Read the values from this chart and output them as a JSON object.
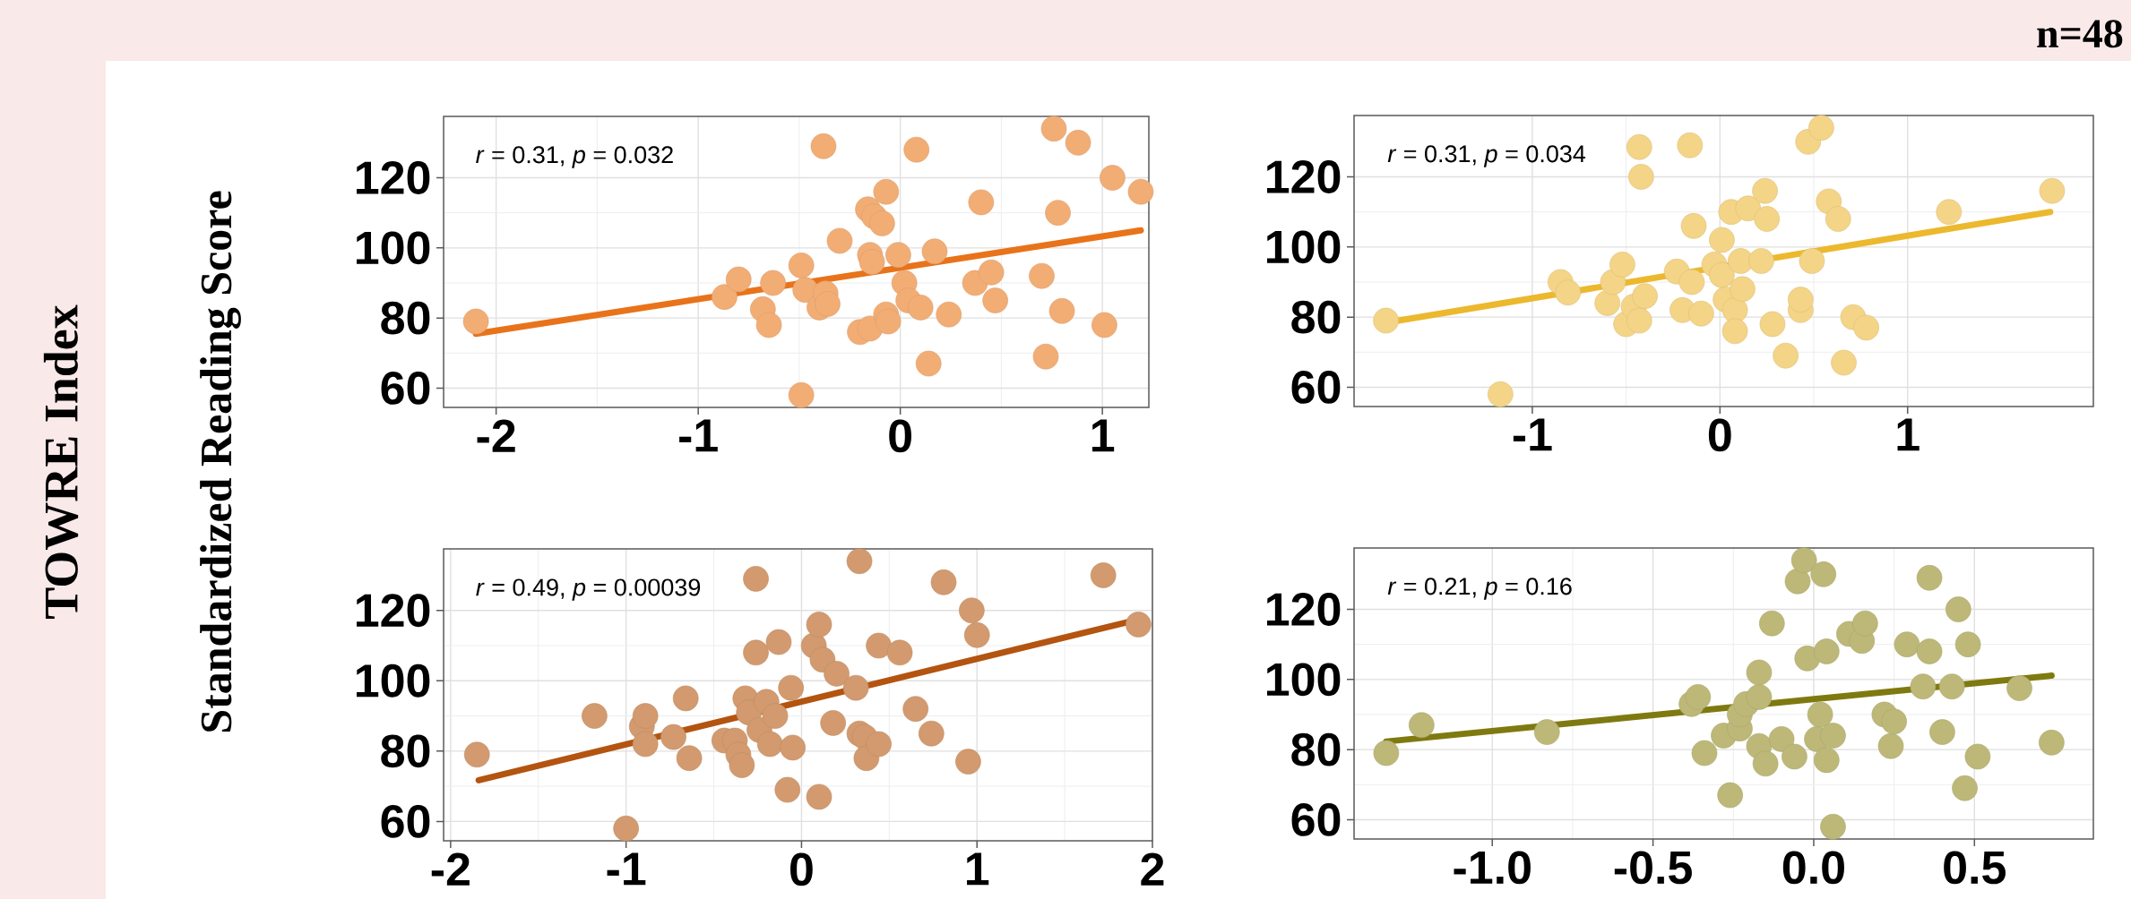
{
  "chart_data": [
    {
      "type": "scatter",
      "annotations": [
        "*r* = 0.31, *p* = 0.032",
        "n=48",
        "TOWRE Index",
        "Standardized Reading Score"
      ],
      "grid": true,
      "xlim": [
        -2.26,
        1.23
      ],
      "ylim": [
        54.5,
        137.5
      ],
      "xticks": [
        -2,
        -1,
        0,
        1
      ],
      "yticks": [
        60,
        80,
        100,
        120
      ],
      "series": [
        {
          "type": "scatter",
          "marker": "circle",
          "color": "#f2ad75",
          "x": [
            -2.1,
            -0.87,
            -0.8,
            -0.68,
            -0.65,
            -0.63,
            -0.49,
            -0.47,
            -0.38,
            -0.4,
            -0.37,
            -0.36,
            -0.3,
            -0.2,
            -0.16,
            -0.15,
            -0.15,
            -0.14,
            -0.13,
            -0.09,
            -0.07,
            -0.07,
            -0.06,
            -0.01,
            0.02,
            0.04,
            0.08,
            0.1,
            0.14,
            0.17,
            0.24,
            0.37,
            0.4,
            0.45,
            0.47,
            0.7,
            0.72,
            0.76,
            0.78,
            0.8,
            0.88,
            1.01,
            1.05,
            1.19,
            -0.49
          ],
          "values": [
            79,
            86,
            91,
            82.5,
            78,
            90,
            95,
            88,
            129,
            83,
            87,
            84,
            102,
            76,
            111,
            77,
            98,
            96,
            109,
            107,
            116,
            81,
            79,
            98,
            90,
            85,
            128,
            83,
            67,
            99,
            81,
            90,
            113,
            93,
            85,
            92,
            69,
            134,
            110,
            82,
            130,
            78,
            120,
            116,
            58
          ]
        },
        {
          "type": "line",
          "color": "#e8731a",
          "x": [
            -2.1,
            1.19
          ],
          "values": [
            75.5,
            105
          ]
        }
      ]
    },
    {
      "type": "scatter",
      "annotations": [
        "*r* = 0.31, *p* = 0.034"
      ],
      "grid": true,
      "xlim": [
        -1.95,
        1.99
      ],
      "ylim": [
        54.5,
        137.5
      ],
      "xticks": [
        -1,
        0,
        1
      ],
      "yticks": [
        60,
        80,
        100,
        120
      ],
      "series": [
        {
          "type": "scatter",
          "marker": "circle",
          "color": "#f4d486",
          "x": [
            -1.78,
            -1.17,
            -0.85,
            -0.81,
            -0.6,
            -0.57,
            -0.52,
            -0.5,
            -0.46,
            -0.43,
            -0.43,
            -0.42,
            -0.4,
            -0.23,
            -0.2,
            -0.16,
            -0.15,
            -0.14,
            -0.1,
            -0.03,
            0.01,
            0.01,
            0.03,
            0.06,
            0.08,
            0.08,
            0.11,
            0.12,
            0.15,
            0.22,
            0.24,
            0.25,
            0.28,
            0.35,
            0.43,
            0.43,
            0.47,
            0.49,
            0.54,
            0.58,
            0.63,
            0.66,
            0.71,
            0.78,
            1.22,
            1.77
          ],
          "values": [
            79,
            58,
            90,
            87,
            84,
            90,
            95,
            78,
            83,
            79,
            128.5,
            120,
            86,
            93,
            82,
            129,
            90,
            106,
            81,
            95,
            102,
            92,
            85,
            110,
            82,
            76,
            96,
            88,
            111,
            96,
            116,
            108,
            78,
            69,
            82,
            85,
            130,
            96,
            134,
            113,
            108,
            67,
            80,
            77,
            110,
            116
          ]
        },
        {
          "type": "line",
          "color": "#ecb82e",
          "x": [
            -1.77,
            1.76
          ],
          "values": [
            78.5,
            110
          ]
        }
      ]
    },
    {
      "type": "scatter",
      "annotations": [
        "*r* = 0.49, *p* = 0.00039"
      ],
      "grid": true,
      "xlim": [
        -2.04,
        2.0
      ],
      "ylim": [
        54.5,
        137.5
      ],
      "xticks": [
        -2,
        -1,
        0,
        1,
        2
      ],
      "yticks": [
        60,
        80,
        100,
        120
      ],
      "series": [
        {
          "type": "scatter",
          "marker": "circle",
          "color": "#d29a6e",
          "x": [
            -1.85,
            -1.18,
            -1.0,
            -0.91,
            -0.89,
            -0.89,
            -0.73,
            -0.66,
            -0.64,
            -0.44,
            -0.38,
            -0.36,
            -0.34,
            -0.32,
            -0.3,
            -0.26,
            -0.26,
            -0.24,
            -0.2,
            -0.18,
            -0.15,
            -0.13,
            -0.08,
            -0.06,
            -0.05,
            0.07,
            0.1,
            0.1,
            0.12,
            0.18,
            0.2,
            0.31,
            0.33,
            0.33,
            0.36,
            0.37,
            0.44,
            0.44,
            0.56,
            0.65,
            0.74,
            0.81,
            0.95,
            0.97,
            1.0,
            1.72,
            1.92
          ],
          "values": [
            79,
            90,
            58,
            87,
            90,
            82,
            84,
            95,
            78,
            83,
            83,
            79,
            76,
            95,
            91,
            108,
            129,
            86,
            94,
            82,
            90,
            111,
            69,
            98,
            81,
            110,
            116,
            67,
            106,
            88,
            102,
            98,
            134,
            85,
            84,
            78,
            82,
            110,
            108,
            92,
            85,
            128,
            77,
            120,
            113,
            130,
            116
          ]
        },
        {
          "type": "line",
          "color": "#b35410",
          "x": [
            -1.84,
            1.92
          ],
          "values": [
            71.7,
            117.4
          ]
        }
      ]
    },
    {
      "type": "scatter",
      "annotations": [
        "*r* = 0.21, *p* = 0.16"
      ],
      "grid": true,
      "xlim": [
        -1.43,
        0.87
      ],
      "ylim": [
        54.5,
        137.5
      ],
      "xticks": [
        {
          "value": -1,
          "label": "-1.0"
        },
        -0.5,
        {
          "value": 0,
          "label": "0.0"
        },
        0.5
      ],
      "yticks": [
        60,
        80,
        100,
        120
      ],
      "series": [
        {
          "type": "scatter",
          "marker": "circle",
          "color": "#bdb878",
          "x": [
            -1.33,
            -1.22,
            -0.83,
            -0.38,
            -0.36,
            -0.34,
            -0.28,
            -0.26,
            -0.23,
            -0.23,
            -0.21,
            -0.17,
            -0.17,
            -0.17,
            -0.15,
            -0.13,
            -0.1,
            -0.06,
            -0.05,
            -0.03,
            -0.02,
            0.01,
            0.02,
            0.03,
            0.04,
            0.04,
            0.06,
            0.06,
            0.11,
            0.15,
            0.16,
            0.22,
            0.24,
            0.25,
            0.29,
            0.34,
            0.36,
            0.36,
            0.4,
            0.43,
            0.45,
            0.47,
            0.48,
            0.51,
            0.64,
            0.74
          ],
          "values": [
            79,
            87,
            85,
            93,
            95,
            79,
            84,
            67,
            86,
            90,
            93,
            95,
            102,
            81,
            76,
            116,
            83,
            78,
            128,
            134,
            106,
            83,
            90,
            130,
            77,
            108,
            84,
            58,
            113,
            111,
            116,
            90,
            81,
            88,
            110,
            98,
            129,
            108,
            85,
            98,
            120,
            69,
            110,
            78,
            97.5,
            82
          ]
        },
        {
          "type": "line",
          "color": "#7f7a10",
          "x": [
            -1.33,
            0.74
          ],
          "values": [
            82.3,
            101.1
          ]
        }
      ]
    }
  ]
}
